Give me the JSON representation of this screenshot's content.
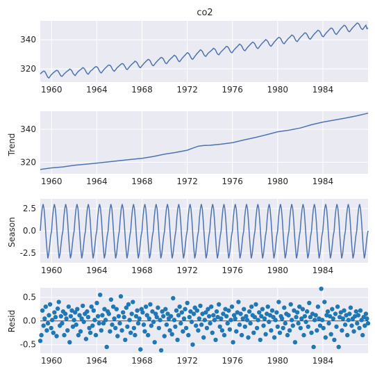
{
  "chart_data": [
    {
      "type": "line",
      "title": "co2",
      "ylabel": "",
      "x_range": [
        1959.0,
        1988.0
      ],
      "xlim": [
        1959.0,
        1988.0
      ],
      "ylim": [
        311,
        353
      ],
      "xticks": [
        "1960",
        "1964",
        "1968",
        "1972",
        "1976",
        "1980",
        "1984"
      ],
      "yticks": [
        320,
        340
      ],
      "grid": true,
      "series": [
        {
          "values": [
            316.6,
            317.3,
            317.9,
            318.5,
            318.3,
            317.2,
            315.6,
            314.2,
            313.8,
            314.9,
            315.9,
            316.6,
            317.4,
            317.9,
            318.6,
            319.0,
            318.8,
            317.7,
            316.4,
            315.1,
            314.9,
            315.7,
            316.7,
            317.3,
            318.0,
            318.6,
            319.1,
            319.9,
            319.6,
            318.7,
            317.1,
            316.1,
            315.4,
            316.4,
            317.5,
            318.3,
            319.0,
            319.5,
            320.1,
            320.9,
            320.5,
            319.6,
            318.1,
            316.9,
            316.4,
            317.3,
            318.4,
            319.0,
            319.6,
            320.4,
            321.0,
            321.6,
            321.4,
            320.6,
            319.1,
            317.8,
            317.2,
            318.1,
            319.2,
            320.0,
            320.8,
            321.5,
            322.2,
            322.7,
            322.5,
            321.7,
            320.1,
            318.9,
            318.4,
            319.3,
            320.3,
            321.1,
            321.8,
            322.5,
            323.1,
            323.7,
            323.5,
            322.6,
            321.3,
            319.9,
            319.6,
            320.6,
            321.6,
            322.4,
            323.1,
            323.8,
            324.5,
            325.3,
            324.9,
            324.1,
            322.6,
            321.3,
            320.9,
            321.8,
            322.8,
            323.6,
            324.4,
            325.1,
            325.9,
            326.5,
            326.3,
            325.4,
            323.8,
            322.5,
            322.2,
            323.2,
            324.2,
            325.0,
            325.9,
            326.5,
            327.3,
            327.9,
            327.6,
            326.9,
            325.3,
            324.0,
            323.6,
            324.6,
            325.6,
            326.4,
            327.2,
            327.8,
            328.6,
            329.4,
            329.0,
            328.2,
            326.6,
            325.4,
            325.0,
            326.0,
            327.1,
            327.9,
            328.7,
            329.5,
            330.3,
            331.1,
            330.8,
            329.9,
            328.3,
            327.0,
            326.6,
            327.6,
            328.7,
            329.6,
            330.6,
            331.4,
            332.2,
            333.1,
            332.7,
            331.8,
            330.2,
            329.0,
            328.6,
            329.6,
            330.6,
            331.4,
            331.9,
            332.6,
            333.3,
            334.2,
            333.8,
            332.9,
            331.3,
            330.1,
            329.7,
            330.7,
            331.7,
            332.5,
            333.2,
            333.9,
            334.8,
            335.5,
            335.2,
            334.3,
            332.7,
            331.5,
            331.1,
            332.1,
            333.1,
            333.9,
            334.7,
            335.4,
            336.2,
            337.0,
            336.6,
            335.7,
            334.1,
            332.9,
            332.5,
            333.5,
            334.5,
            335.4,
            336.1,
            336.9,
            337.7,
            338.4,
            338.1,
            337.2,
            335.6,
            334.4,
            334.0,
            335.0,
            336.0,
            336.9,
            337.8,
            338.5,
            339.3,
            340.1,
            339.7,
            338.8,
            337.2,
            336.0,
            335.6,
            336.6,
            337.6,
            338.6,
            339.4,
            340.2,
            341.0,
            341.7,
            341.4,
            340.5,
            338.9,
            337.7,
            337.3,
            338.3,
            339.3,
            340.2,
            341.0,
            341.7,
            342.5,
            343.3,
            342.9,
            342.0,
            340.4,
            339.2,
            338.8,
            339.8,
            340.8,
            341.8,
            342.5,
            343.2,
            344.1,
            344.8,
            344.5,
            343.6,
            342.0,
            340.8,
            340.4,
            341.4,
            342.4,
            343.4,
            344.3,
            345.0,
            345.8,
            346.6,
            346.2,
            345.3,
            343.7,
            342.5,
            342.1,
            343.1,
            344.1,
            345.1,
            345.8,
            346.6,
            347.4,
            348.1,
            347.8,
            346.9,
            345.3,
            344.1,
            343.7,
            344.7,
            345.7,
            346.7,
            347.7,
            348.4,
            349.2,
            350.0,
            349.6,
            348.7,
            347.1,
            345.9,
            345.5,
            346.5,
            347.5,
            348.4,
            349.2,
            350.0,
            350.8,
            351.5,
            351.2,
            350.3,
            348.7,
            347.5,
            347.1,
            348.1,
            349.1,
            350.0,
            347.6,
            348.2
          ]
        }
      ]
    },
    {
      "type": "line",
      "title": "",
      "ylabel": "Trend",
      "xlim": [
        1959.0,
        1988.0
      ],
      "ylim": [
        313,
        351
      ],
      "xticks": [
        "1960",
        "1964",
        "1968",
        "1972",
        "1976",
        "1980",
        "1984"
      ],
      "yticks": [
        320,
        340
      ],
      "grid": true,
      "series": [
        {
          "x": [
            1959.0,
            1960.0,
            1961.0,
            1962.0,
            1963.0,
            1964.0,
            1965.0,
            1966.0,
            1967.0,
            1968.0,
            1969.0,
            1970.0,
            1971.0,
            1972.0,
            1972.5,
            1973.0,
            1973.5,
            1974.0,
            1975.0,
            1976.0,
            1977.0,
            1978.0,
            1979.0,
            1980.0,
            1981.0,
            1982.0,
            1983.0,
            1984.0,
            1985.0,
            1986.0,
            1987.0,
            1988.0
          ],
          "values": [
            315.6,
            316.6,
            317.2,
            318.2,
            318.8,
            319.5,
            320.2,
            321.0,
            321.7,
            322.4,
            323.5,
            324.9,
            326.0,
            327.3,
            328.6,
            329.8,
            330.2,
            330.3,
            331.0,
            331.9,
            333.5,
            335.0,
            336.7,
            338.5,
            339.5,
            340.8,
            342.8,
            344.4,
            345.6,
            346.8,
            348.2,
            349.8
          ]
        }
      ]
    },
    {
      "type": "line",
      "title": "",
      "ylabel": "Season",
      "xlim": [
        1959.0,
        1988.0
      ],
      "ylim": [
        -3.6,
        3.6
      ],
      "xticks": [
        "1960",
        "1964",
        "1968",
        "1972",
        "1976",
        "1980",
        "1984"
      ],
      "yticks": [
        -2.5,
        0.0,
        2.5
      ],
      "grid": true,
      "seasonal_pattern": [
        0.0,
        1.5,
        2.5,
        3.0,
        2.5,
        1.2,
        -0.5,
        -2.0,
        -3.1,
        -2.6,
        -1.6,
        -0.6
      ],
      "series": [
        {
          "period_years": 1.0
        }
      ]
    },
    {
      "type": "scatter",
      "title": "",
      "ylabel": "Resid",
      "xlim": [
        1959.0,
        1988.0
      ],
      "ylim": [
        -0.68,
        0.7
      ],
      "xticks": [
        "1960",
        "1964",
        "1968",
        "1972",
        "1976",
        "1980",
        "1984"
      ],
      "yticks": [
        -0.5,
        0.0,
        0.5
      ],
      "grid": true,
      "reference_line": 0.0,
      "series": [
        {
          "values": [
            -0.42,
            -0.3,
            0.22,
            -0.1,
            0.05,
            0.3,
            -0.2,
            -0.05,
            0.12,
            0.35,
            -0.15,
            0.02,
            -0.25,
            0.18,
            0.08,
            -0.32,
            0.26,
            0.4,
            -0.1,
            0.1,
            -0.05,
            0.2,
            -0.3,
            0.15,
            0.05,
            -0.2,
            0.3,
            -0.45,
            0.1,
            0.22,
            -0.12,
            0.02,
            0.18,
            -0.08,
            0.25,
            -0.3,
            0.12,
            -0.22,
            0.05,
            0.32,
            -0.02,
            0.15,
            -0.38,
            0.2,
            0.08,
            -0.15,
            -0.25,
            0.3,
            -0.1,
            0.22,
            0.02,
            -0.3,
            0.38,
            0.1,
            -0.05,
            0.55,
            -0.2,
            0.12,
            -0.05,
            0.25,
            0.02,
            -0.55,
            0.2,
            0.15,
            -0.22,
            0.45,
            -0.08,
            0.3,
            0.05,
            -0.15,
            0.25,
            -0.32,
            0.1,
            -0.05,
            0.52,
            -0.2,
            0.18,
            0.08,
            -0.4,
            0.28,
            -0.12,
            0.35,
            0.02,
            -0.25,
            0.15,
            0.4,
            -0.15,
            -0.3,
            0.1,
            0.22,
            -0.05,
            0.05,
            -0.6,
            0.25,
            0.18,
            -0.08,
            -0.22,
            0.3,
            0.12,
            -0.3,
            0.05,
            0.35,
            -0.1,
            0.2,
            -0.02,
            -0.45,
            0.15,
            0.08,
            0.28,
            -0.15,
            0.02,
            -0.62,
            0.2,
            0.1,
            -0.32,
            0.25,
            -0.08,
            0.15,
            0.05,
            -0.2,
            0.1,
            -0.28,
            0.48,
            0.02,
            -0.12,
            0.22,
            -0.4,
            0.12,
            0.3,
            -0.05,
            0.18,
            -0.22,
            0.05,
            0.25,
            -0.15,
            0.38,
            -0.3,
            0.08,
            0.2,
            -0.02,
            -0.5,
            0.15,
            0.28,
            -0.1,
            0.22,
            -0.2,
            0.05,
            0.32,
            -0.08,
            0.15,
            -0.35,
            0.02,
            0.18,
            -0.15,
            0.25,
            0.1,
            -0.05,
            0.3,
            -0.25,
            0.12,
            0.02,
            -0.4,
            0.2,
            0.08,
            0.35,
            -0.12,
            0.05,
            -0.2,
            0.15,
            -0.3,
            0.25,
            0.1,
            -0.05,
            0.22,
            -0.18,
            0.02,
            0.3,
            -0.45,
            0.12,
            0.05,
            -0.22,
            0.18,
            0.4,
            -0.08,
            0.15,
            -0.3,
            0.05,
            0.25,
            -0.12,
            0.1,
            0.02,
            -0.35,
            0.2,
            -0.05,
            0.3,
            0.12,
            -0.25,
            0.08,
            0.35,
            -0.15,
            0.02,
            0.18,
            -0.4,
            0.1,
            0.25,
            -0.1,
            0.05,
            -0.28,
            0.15,
            0.3,
            -0.02,
            0.12,
            -0.2,
            0.22,
            0.08,
            -0.35,
            0.02,
            0.18,
            -0.12,
            0.4,
            -0.25,
            0.1,
            0.05,
            -0.15,
            0.28,
            -0.05,
            0.15,
            -0.3,
            0.12,
            -0.2,
            0.35,
            0.02,
            -0.1,
            0.22,
            -0.45,
            0.08,
            0.18,
            -0.05,
            0.3,
            -0.15,
            0.05,
            0.25,
            -0.3,
            0.1,
            -0.02,
            0.2,
            -0.12,
            0.38,
            0.08,
            -0.25,
            0.15,
            -0.55,
            0.02,
            0.12,
            -0.2,
            0.3,
            0.05,
            -0.1,
            0.68,
            0.02,
            -0.15,
            0.4,
            -0.35,
            0.12,
            0.2,
            -0.05,
            0.1,
            -0.28,
            0.25,
            0.05,
            -0.4,
            0.15,
            -0.12,
            0.3,
            -0.55,
            0.08,
            0.18,
            -0.2,
            0.05,
            0.22,
            -0.08,
            0.12,
            -0.3,
            0.02,
            0.15,
            0.28,
            -0.1,
            0.05,
            -0.22,
            0.1,
            0.2,
            -0.05,
            0.12,
            -0.15,
            0.22,
            0.02,
            -0.3,
            0.08,
            -0.1,
            0.15,
            0.05,
            -0.05
          ]
        }
      ]
    }
  ],
  "colors": {
    "line": "#4c72b0",
    "dot": "#1f77b4",
    "axes_bg": "#eaeaf2",
    "grid": "#ffffff",
    "text": "#262626"
  }
}
